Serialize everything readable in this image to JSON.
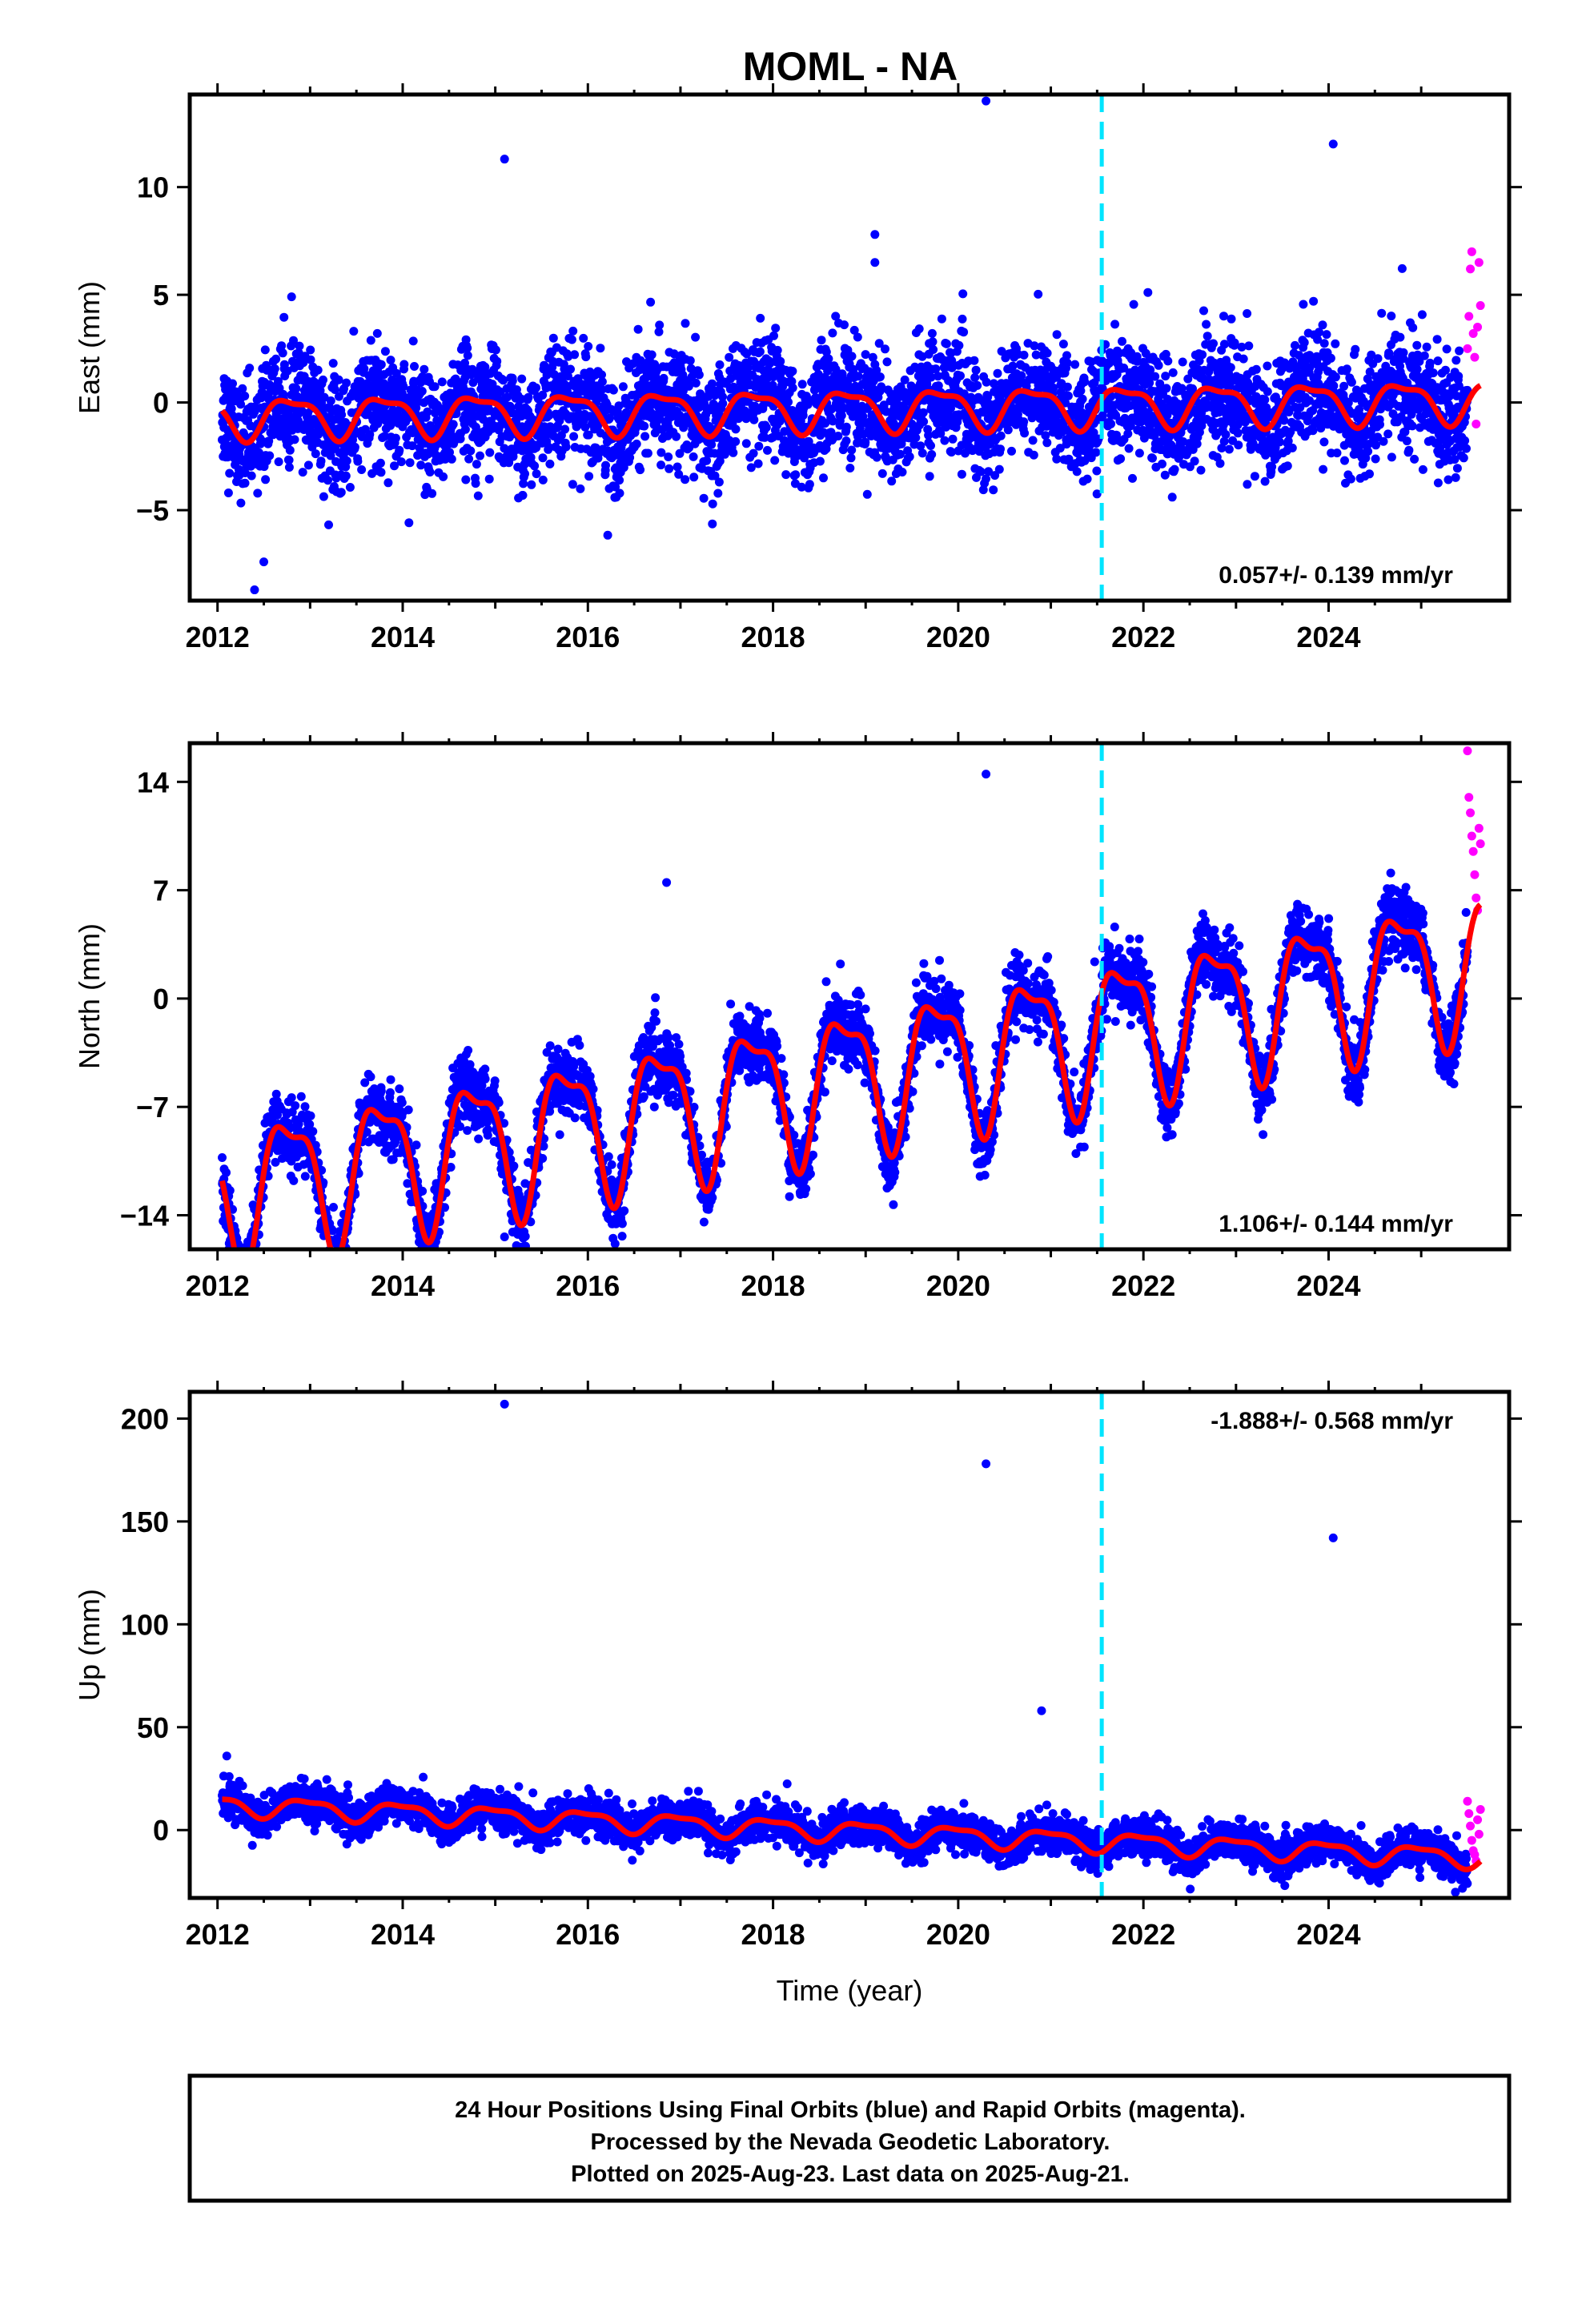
{
  "title": "MOML - NA",
  "caption": [
    "24 Hour Positions Using Final Orbits (blue) and Rapid Orbits (magenta).",
    "Processed by the Nevada Geodetic Laboratory.",
    "Plotted on 2025-Aug-23. Last data on 2025-Aug-21."
  ],
  "colors": {
    "final_orbits": "#0000ff",
    "rapid_orbits": "#ff00ff",
    "model_fit": "#ff0000",
    "event_line": "#00e5ff"
  },
  "chart_data": [
    {
      "type": "scatter",
      "component": "east",
      "title": "MOML - NA",
      "xlabel": "",
      "ylabel": "East (mm)",
      "xlim": [
        2011.7,
        2025.95
      ],
      "ylim": [
        -9.2,
        14.3
      ],
      "xticks": [
        2012,
        2014,
        2016,
        2018,
        2020,
        2022,
        2024
      ],
      "yticks": [
        -5,
        0,
        5,
        10
      ],
      "ytick_labels": [
        "−5",
        "0",
        "5",
        "10"
      ],
      "rate_label": "0.057+/- 0.139 mm/yr",
      "rate_position": "bottom-right",
      "event_line_x": 2021.55,
      "series": [
        {
          "name": "Final Orbits (blue)",
          "x_range": [
            2012.05,
            2025.5
          ],
          "trend_mm_per_yr": 0.057,
          "offset_mm": -0.3,
          "annual_amplitude_mm": 0.9,
          "annual_phase": 0.55,
          "noise_sd_mm": 1.3
        },
        {
          "name": "Rapid Orbits (magenta)",
          "x_range": [
            2025.5,
            2025.64
          ],
          "values_mm": [
            2.5,
            4.0,
            6.2,
            7.0,
            3.2,
            2.1,
            -1.0,
            3.5,
            6.5,
            4.5
          ]
        }
      ],
      "outliers": [
        {
          "x": 2015.1,
          "y": 11.3
        },
        {
          "x": 2020.3,
          "y": 14.0
        },
        {
          "x": 2019.1,
          "y": 7.8
        },
        {
          "x": 2019.1,
          "y": 6.5
        },
        {
          "x": 2024.05,
          "y": 12.0
        },
        {
          "x": 2012.4,
          "y": -8.7
        },
        {
          "x": 2012.5,
          "y": -7.4
        }
      ]
    },
    {
      "type": "scatter",
      "component": "north",
      "xlabel": "",
      "ylabel": "North (mm)",
      "xlim": [
        2011.7,
        2025.95
      ],
      "ylim": [
        -16.2,
        16.5
      ],
      "xticks": [
        2012,
        2014,
        2016,
        2018,
        2020,
        2022,
        2024
      ],
      "yticks": [
        -14,
        -7,
        0,
        7,
        14
      ],
      "ytick_labels": [
        "−14",
        "−7",
        "0",
        "7",
        "14"
      ],
      "rate_label": "1.106+/- 0.144 mm/yr",
      "rate_position": "bottom-right",
      "event_line_x": 2021.55,
      "series": [
        {
          "name": "Final Orbits (blue)",
          "x_range": [
            2012.05,
            2025.5
          ],
          "trend_mm_per_yr": 1.106,
          "offset_mm": -5.0,
          "annual_amplitude_mm": 4.3,
          "annual_phase": 0.52,
          "noise_sd_mm": 1.1
        },
        {
          "name": "Rapid Orbits (magenta)",
          "x_range": [
            2025.5,
            2025.64
          ],
          "values_mm": [
            16.0,
            13.0,
            12.0,
            10.5,
            9.5,
            8.0,
            6.5,
            5.7,
            11.0,
            10.0
          ]
        }
      ],
      "outliers": [
        {
          "x": 2020.3,
          "y": 14.5
        },
        {
          "x": 2015.1,
          "y": -15.4
        },
        {
          "x": 2015.1,
          "y": -10.5
        },
        {
          "x": 2019.1,
          "y": -6.3
        },
        {
          "x": 2016.85,
          "y": 7.5
        }
      ]
    },
    {
      "type": "scatter",
      "component": "up",
      "xlabel": "Time (year)",
      "ylabel": "Up (mm)",
      "xlim": [
        2011.7,
        2025.95
      ],
      "ylim": [
        -33,
        213
      ],
      "xticks": [
        2012,
        2014,
        2016,
        2018,
        2020,
        2022,
        2024
      ],
      "yticks": [
        0,
        50,
        100,
        150,
        200
      ],
      "ytick_labels": [
        "0",
        "50",
        "100",
        "150",
        "200"
      ],
      "rate_label": "-1.888+/- 0.568 mm/yr",
      "rate_position": "top-right",
      "event_line_x": 2021.55,
      "series": [
        {
          "name": "Final Orbits (blue)",
          "x_range": [
            2012.05,
            2025.5
          ],
          "trend_mm_per_yr": -1.888,
          "offset_mm": -0.5,
          "annual_amplitude_mm": 4.5,
          "annual_phase": 0.72,
          "noise_sd_mm": 4.5
        },
        {
          "name": "Rapid Orbits (magenta)",
          "x_range": [
            2025.5,
            2025.64
          ],
          "values_mm": [
            14.0,
            8.0,
            2.0,
            -5.0,
            -10.0,
            -12.0,
            -15.0,
            5.0,
            -2.0,
            10.0
          ]
        }
      ],
      "outliers": [
        {
          "x": 2015.1,
          "y": 207
        },
        {
          "x": 2020.3,
          "y": 178
        },
        {
          "x": 2020.9,
          "y": 58
        },
        {
          "x": 2024.05,
          "y": 142
        },
        {
          "x": 2012.1,
          "y": 36
        }
      ]
    }
  ]
}
